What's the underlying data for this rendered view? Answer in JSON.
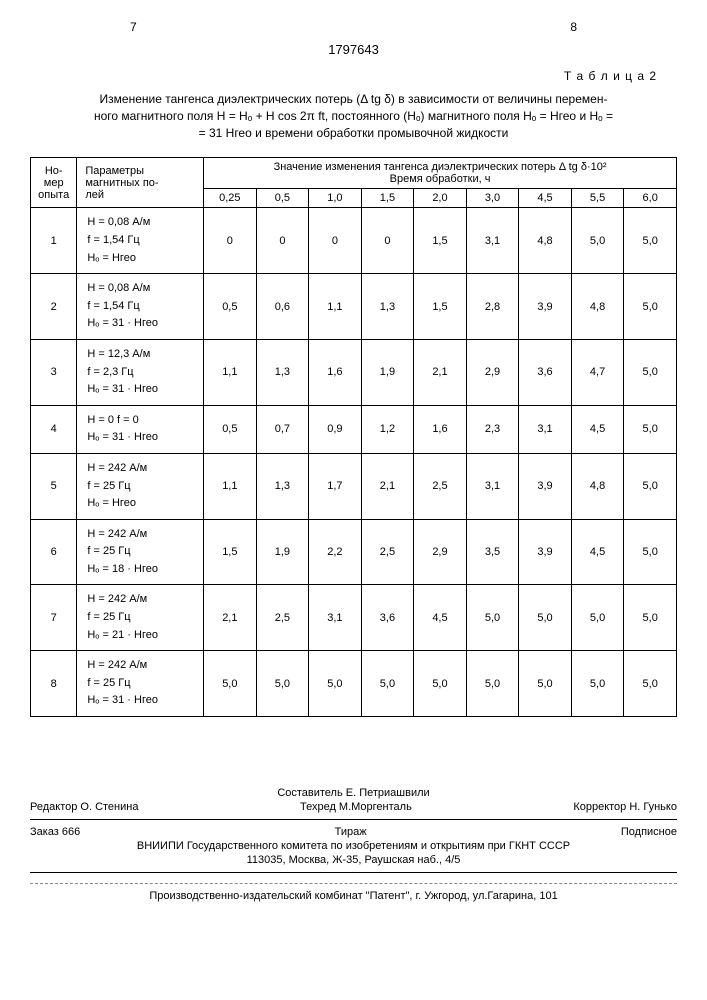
{
  "page_left": "7",
  "page_right": "8",
  "doc_number": "1797643",
  "table_label": "Т а б л и ц а 2",
  "caption_l1": "Изменение тангенса диэлектрических потерь (Δ tg δ) в зависимости от величины перемен-",
  "caption_l2": "ного магнитного поля H = Hₒ + H cos 2π ft, постоянного (Hₒ) магнитного поля Hₒ = Hгео и Hₒ =",
  "caption_l3": "= 31 Hгео и времени обработки промывочной жидкости",
  "hdr_no_1": "Но-",
  "hdr_no_2": "мер",
  "hdr_no_3": "опыта",
  "hdr_param_1": "Параметры",
  "hdr_param_2": "магнитных по-",
  "hdr_param_3": "лей",
  "hdr_main": "Значение изменения тангенса диэлектрических потерь Δ tg δ·10²",
  "hdr_sub": "Время обработки, ч",
  "times": [
    "0,25",
    "0,5",
    "1,0",
    "1,5",
    "2,0",
    "3,0",
    "4,5",
    "5,5",
    "6,0"
  ],
  "rows": [
    {
      "n": "1",
      "p1": "H = 0,08 А/м",
      "p2": "f = 1,54 Гц",
      "p3": "Hₒ = Hгео",
      "v": [
        "0",
        "0",
        "0",
        "0",
        "1,5",
        "3,1",
        "4,8",
        "5,0",
        "5,0"
      ]
    },
    {
      "n": "2",
      "p1": "H = 0,08 А/м",
      "p2": "f = 1,54 Гц",
      "p3": "Hₒ = 31 · Hгео",
      "v": [
        "0,5",
        "0,6",
        "1,1",
        "1,3",
        "1,5",
        "2,8",
        "3,9",
        "4,8",
        "5,0"
      ]
    },
    {
      "n": "3",
      "p1": "H = 12,3 А/м",
      "p2": "f = 2,3 Гц",
      "p3": "Hₒ = 31 · Hгео",
      "v": [
        "1,1",
        "1,3",
        "1,6",
        "1,9",
        "2,1",
        "2,9",
        "3,6",
        "4,7",
        "5,0"
      ]
    },
    {
      "n": "4",
      "p1": "H = 0  f = 0",
      "p2": "Hₒ = 31 · Hгео",
      "p3": "",
      "v": [
        "0,5",
        "0,7",
        "0,9",
        "1,2",
        "1,6",
        "2,3",
        "3,1",
        "4,5",
        "5,0"
      ]
    },
    {
      "n": "5",
      "p1": "H = 242 А/м",
      "p2": "f = 25 Гц",
      "p3": "Hₒ = Hгео",
      "v": [
        "1,1",
        "1,3",
        "1,7",
        "2,1",
        "2,5",
        "3,1",
        "3,9",
        "4,8",
        "5,0"
      ]
    },
    {
      "n": "6",
      "p1": "H = 242 А/м",
      "p2": "f = 25 Гц",
      "p3": "Hₒ = 18 · Hгео",
      "v": [
        "1,5",
        "1,9",
        "2,2",
        "2,5",
        "2,9",
        "3,5",
        "3,9",
        "4,5",
        "5,0"
      ]
    },
    {
      "n": "7",
      "p1": "H = 242 А/м",
      "p2": "f = 25 Гц",
      "p3": "Hₒ = 21 · Hгео",
      "v": [
        "2,1",
        "2,5",
        "3,1",
        "3,6",
        "4,5",
        "5,0",
        "5,0",
        "5,0",
        "5,0"
      ]
    },
    {
      "n": "8",
      "p1": "H = 242 А/м",
      "p2": "f = 25 Гц",
      "p3": "Hₒ = 31 · Hгео",
      "v": [
        "5,0",
        "5,0",
        "5,0",
        "5,0",
        "5,0",
        "5,0",
        "5,0",
        "5,0",
        "5,0"
      ]
    }
  ],
  "footer": {
    "composer": "Составитель Е. Петриашвили",
    "editor": "Редактор О. Стенина",
    "tech": "Техред М.Моргенталь",
    "corrector": "Корректор Н. Гунько",
    "order": "Заказ 666",
    "tirazh": "Тираж",
    "podpisnoe": "Подписное",
    "org1": "ВНИИПИ Государственного комитета по изобретениям и открытиям при ГКНТ СССР",
    "org2": "113035, Москва, Ж-35, Раушская наб., 4/5",
    "print": "Производственно-издательский комбинат \"Патент\", г. Ужгород, ул.Гагарина, 101"
  }
}
